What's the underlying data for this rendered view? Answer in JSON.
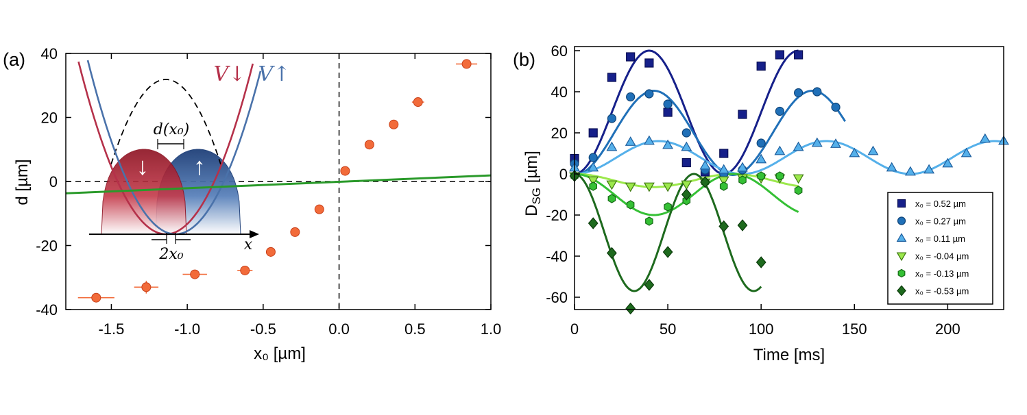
{
  "chart_data": [
    {
      "panel_label": "(a)",
      "type": "scatter",
      "xlabel": "x₀ [µm]",
      "ylabel": "d [µm]",
      "xlim": [
        -1.8,
        1.0
      ],
      "ylim": [
        -40,
        40
      ],
      "xticks": [
        "-1.5",
        "-1.0",
        "-0.5",
        "0.0",
        "0.5",
        "1.0"
      ],
      "yticks": [
        "-40",
        "-20",
        "0",
        "20",
        "40"
      ],
      "colors": {
        "points": "#f26b3a",
        "edge": "#c8401a",
        "fit": "#2a9a2a"
      },
      "points": [
        {
          "x": -1.6,
          "y": -36.3,
          "xerr": 0.12,
          "yerr": 0.5
        },
        {
          "x": -1.27,
          "y": -33.0,
          "xerr": 0.08,
          "yerr": 2.0
        },
        {
          "x": -0.95,
          "y": -29.0,
          "xerr": 0.08,
          "yerr": 0.6
        },
        {
          "x": -0.62,
          "y": -27.8,
          "xerr": 0.05,
          "yerr": 0.6
        },
        {
          "x": -0.45,
          "y": -22.0,
          "xerr": 0.03,
          "yerr": 1.5
        },
        {
          "x": -0.29,
          "y": -15.8,
          "xerr": 0.02,
          "yerr": 0.5
        },
        {
          "x": -0.13,
          "y": -8.7,
          "xerr": 0.02,
          "yerr": 0.5
        },
        {
          "x": 0.04,
          "y": 3.3,
          "xerr": 0.02,
          "yerr": 0.5
        },
        {
          "x": 0.2,
          "y": 11.5,
          "xerr": 0.02,
          "yerr": 0.5
        },
        {
          "x": 0.36,
          "y": 17.8,
          "xerr": 0.02,
          "yerr": 0.5
        },
        {
          "x": 0.52,
          "y": 24.8,
          "xerr": 0.04,
          "yerr": 0.5
        },
        {
          "x": 0.84,
          "y": 36.7,
          "xerr": 0.07,
          "yerr": 0.5
        }
      ],
      "fit_line": {
        "x": [
          -1.8,
          1.0
        ],
        "y": [
          -3.7,
          1.9
        ]
      },
      "inset": {
        "labels": {
          "v_down": "V↓",
          "v_up": "V↑",
          "d": "d(x₀)",
          "two_x0": "2x₀",
          "x": "x",
          "down": "↓",
          "up": "↑"
        },
        "colors": {
          "red": "#b5314a",
          "blue": "#4a72aa",
          "dark_red": "#8c1020",
          "dark_blue": "#1e3f78"
        }
      }
    },
    {
      "panel_label": "(b)",
      "type": "line",
      "xlabel": "Time [ms]",
      "ylabel": "D",
      "ylabel_sub": "SG",
      "ylabel_unit": " [µm]",
      "xlim": [
        0,
        230
      ],
      "ylim": [
        -66,
        62
      ],
      "xticks": [
        "0",
        "50",
        "100",
        "150",
        "200"
      ],
      "yticks": [
        "60",
        "40",
        "20",
        "0",
        "-20",
        "-40",
        "-60"
      ],
      "legend_position": "bottom-right",
      "series": [
        {
          "name": "x₀ =  0.52 µm",
          "marker": "square",
          "color": "#16208a",
          "edge": "#0a0f55",
          "points": [
            [
              0,
              7.5
            ],
            [
              10,
              20
            ],
            [
              20,
              47
            ],
            [
              30,
              57
            ],
            [
              40,
              54
            ],
            [
              50,
              30
            ],
            [
              60,
              5.5
            ],
            [
              70,
              1
            ],
            [
              80,
              10
            ],
            [
              90,
              29
            ],
            [
              100,
              52.5
            ],
            [
              110,
              58
            ],
            [
              120,
              58
            ]
          ],
          "fit": {
            "A": 30,
            "C": 30,
            "period": 80,
            "t_end": 120
          }
        },
        {
          "name": "x₀ =  0.27 µm",
          "marker": "circle",
          "color": "#2070b8",
          "edge": "#0f4478",
          "points": [
            [
              0,
              5
            ],
            [
              10,
              8
            ],
            [
              20,
              27
            ],
            [
              30,
              37.5
            ],
            [
              40,
              39
            ],
            [
              50,
              34
            ],
            [
              60,
              20
            ],
            [
              70,
              2
            ],
            [
              80,
              0
            ],
            [
              90,
              2
            ],
            [
              100,
              15
            ],
            [
              110,
              30.5
            ],
            [
              120,
              39.5
            ],
            [
              130,
              40
            ],
            [
              140,
              32.5
            ]
          ],
          "fit": {
            "A": 20.5,
            "C": 20,
            "period": 85,
            "t_end": 145
          }
        },
        {
          "name": "x₀ =  0.11 µm",
          "marker": "triangle-up",
          "color": "#55b0ea",
          "edge": "#1f5f9e",
          "points": [
            [
              0,
              3
            ],
            [
              10,
              3
            ],
            [
              20,
              13
            ],
            [
              30,
              15.5
            ],
            [
              40,
              16
            ],
            [
              50,
              14
            ],
            [
              60,
              13
            ],
            [
              70,
              4
            ],
            [
              80,
              2
            ],
            [
              90,
              3
            ],
            [
              100,
              7
            ],
            [
              110,
              11
            ],
            [
              120,
              13
            ],
            [
              130,
              15
            ],
            [
              140,
              14.5
            ],
            [
              150,
              10
            ],
            [
              160,
              11
            ],
            [
              170,
              3
            ],
            [
              180,
              1
            ],
            [
              190,
              2
            ],
            [
              200,
              5
            ],
            [
              210,
              10
            ],
            [
              220,
              17
            ],
            [
              230,
              16
            ]
          ],
          "fit": {
            "A": 8,
            "C": 8,
            "period": 90,
            "t_end": 230
          }
        },
        {
          "name": "x₀ = -0.04 µm",
          "marker": "triangle-down",
          "color": "#9ce84c",
          "edge": "#3f7a12",
          "points": [
            [
              0,
              -1
            ],
            [
              10,
              -3
            ],
            [
              20,
              -5
            ],
            [
              30,
              -6
            ],
            [
              40,
              -6
            ],
            [
              50,
              -6
            ],
            [
              60,
              -5
            ],
            [
              70,
              -4
            ],
            [
              80,
              -3
            ],
            [
              90,
              -2
            ],
            [
              100,
              -2
            ],
            [
              110,
              -2
            ],
            [
              120,
              -2
            ]
          ],
          "fit": {
            "A": -3.2,
            "C": -3.2,
            "period": 85,
            "t_end": 120
          }
        },
        {
          "name": "x₀ = -0.13 µm",
          "marker": "hexagon",
          "color": "#35c035",
          "edge": "#156a15",
          "points": [
            [
              0,
              -1
            ],
            [
              10,
              -6
            ],
            [
              20,
              -12
            ],
            [
              30,
              -15
            ],
            [
              40,
              -23
            ],
            [
              50,
              -16
            ],
            [
              60,
              -13
            ],
            [
              70,
              -4
            ],
            [
              80,
              -6
            ],
            [
              90,
              -3
            ],
            [
              100,
              -1
            ],
            [
              110,
              -1
            ],
            [
              120,
              -8
            ]
          ],
          "fit": {
            "A": -10,
            "C": -10,
            "period": 85,
            "t_end": 120
          }
        },
        {
          "name": "x₀ = -0.53 µm",
          "marker": "diamond",
          "color": "#1e6a1e",
          "edge": "#0a3a0a",
          "points": [
            [
              0,
              -1
            ],
            [
              10,
              -24
            ],
            [
              20,
              -38.5
            ],
            [
              30,
              -65.5
            ],
            [
              40,
              -54
            ],
            [
              50,
              -38
            ],
            [
              60,
              -10
            ],
            [
              70,
              -4
            ],
            [
              80,
              -25.5
            ],
            [
              90,
              -25
            ],
            [
              100,
              -43
            ]
          ],
          "fit": {
            "A": -28.5,
            "C": -28.5,
            "period": 64,
            "t_end": 100
          }
        }
      ]
    }
  ]
}
